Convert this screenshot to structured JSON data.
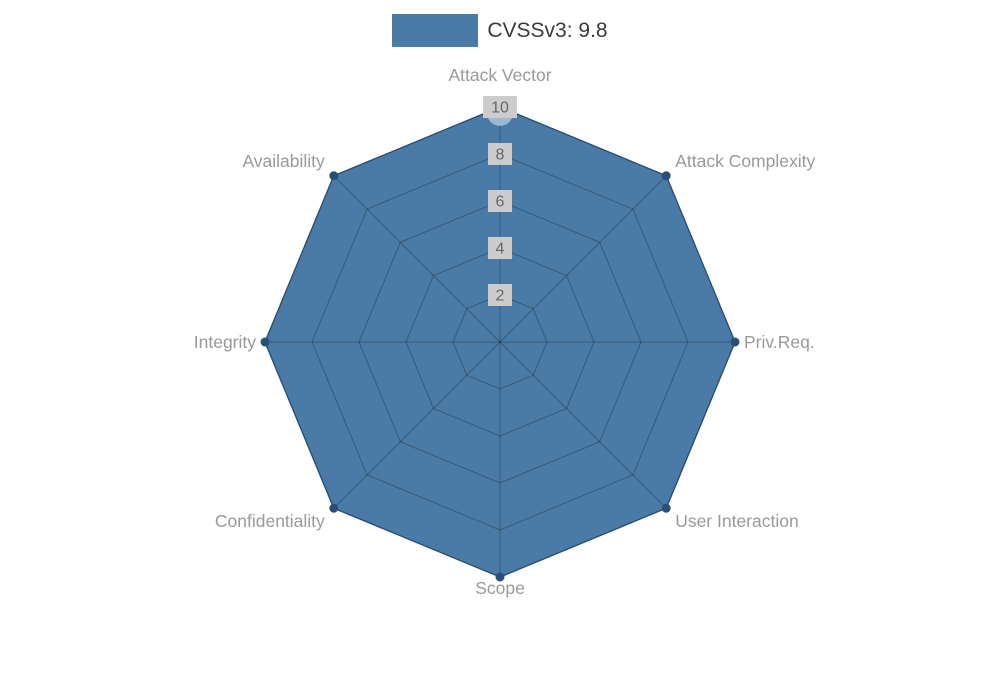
{
  "legend": {
    "series_label": "CVSSv3: 9.8"
  },
  "chart_data": {
    "type": "radar",
    "title": "CVSSv3: 9.8",
    "categories": [
      "Attack Vector",
      "Attack Complexity",
      "Priv.Req.",
      "User Interaction",
      "Scope",
      "Confidentiality",
      "Integrity",
      "Availability"
    ],
    "series": [
      {
        "name": "CVSSv3: 9.8",
        "values": [
          10,
          10,
          10,
          10,
          10,
          10,
          10,
          10
        ]
      }
    ],
    "ticks": [
      2,
      4,
      6,
      8,
      10
    ],
    "tick_labels": [
      "2",
      "4",
      "6",
      "8",
      "10"
    ],
    "rlim": [
      0,
      10
    ],
    "grid": true,
    "legend_position": "top",
    "colors": {
      "fill": "#4a7ba6",
      "stroke": "#3a6690",
      "dot": "#2a4f77",
      "active_dot": "#a3c0da",
      "grid": "rgba(0,0,0,0.27)",
      "axis_label": "#999999",
      "tick_text": "#666666",
      "tick_bg": "#cccccc",
      "legend_text": "#3a3a3a",
      "background": "#ffffff"
    }
  }
}
